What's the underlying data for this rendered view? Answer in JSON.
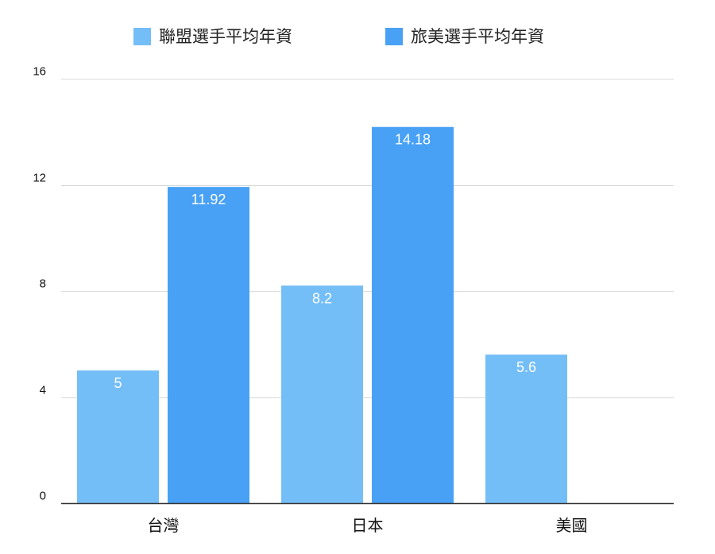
{
  "chart_data": {
    "type": "bar",
    "categories": [
      "台灣",
      "日本",
      "美國"
    ],
    "series": [
      {
        "name": "聯盟選手平均年資",
        "values": [
          5,
          8.2,
          5.6
        ],
        "color": "#74BEF7"
      },
      {
        "name": "旅美選手平均年資",
        "values": [
          11.92,
          14.18,
          null
        ],
        "color": "#48A1F5"
      }
    ],
    "ylim": [
      0,
      16
    ],
    "yticks": [
      0,
      4,
      8,
      12,
      16
    ],
    "grid": true,
    "legend_position": "top"
  }
}
